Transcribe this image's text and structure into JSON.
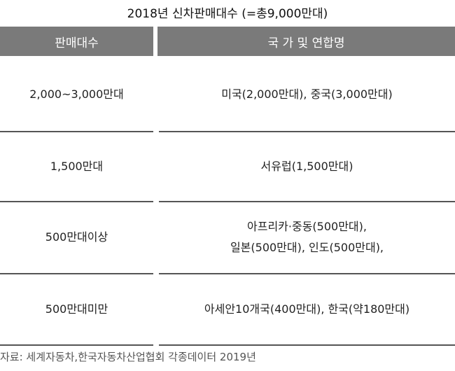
{
  "title": "2018년 신차판매대수 (=총9,000만대)",
  "headers": [
    "판매대수",
    "국 가 및 연합명"
  ],
  "rows": [
    {
      "sales": "2,000~3,000만대",
      "countries": [
        "미국(2,000만대), 중국(3,000만대)"
      ]
    },
    {
      "sales": "1,500만대",
      "countries": [
        "서유럽(1,500만대)"
      ]
    },
    {
      "sales": "500만대이상",
      "countries": [
        "아프리카·중동(500만대),",
        "일본(500만대), 인도(500만대),"
      ]
    },
    {
      "sales": "500만대미만",
      "countries": [
        "아세안10개국(400만대), 한국(약180만대)"
      ]
    }
  ],
  "source": "자료: 세계자동차,한국자동차산업협회 각종데이터 2019년",
  "colors": {
    "header_bg": "#7a7a7a",
    "header_text": "#ffffff"
  }
}
